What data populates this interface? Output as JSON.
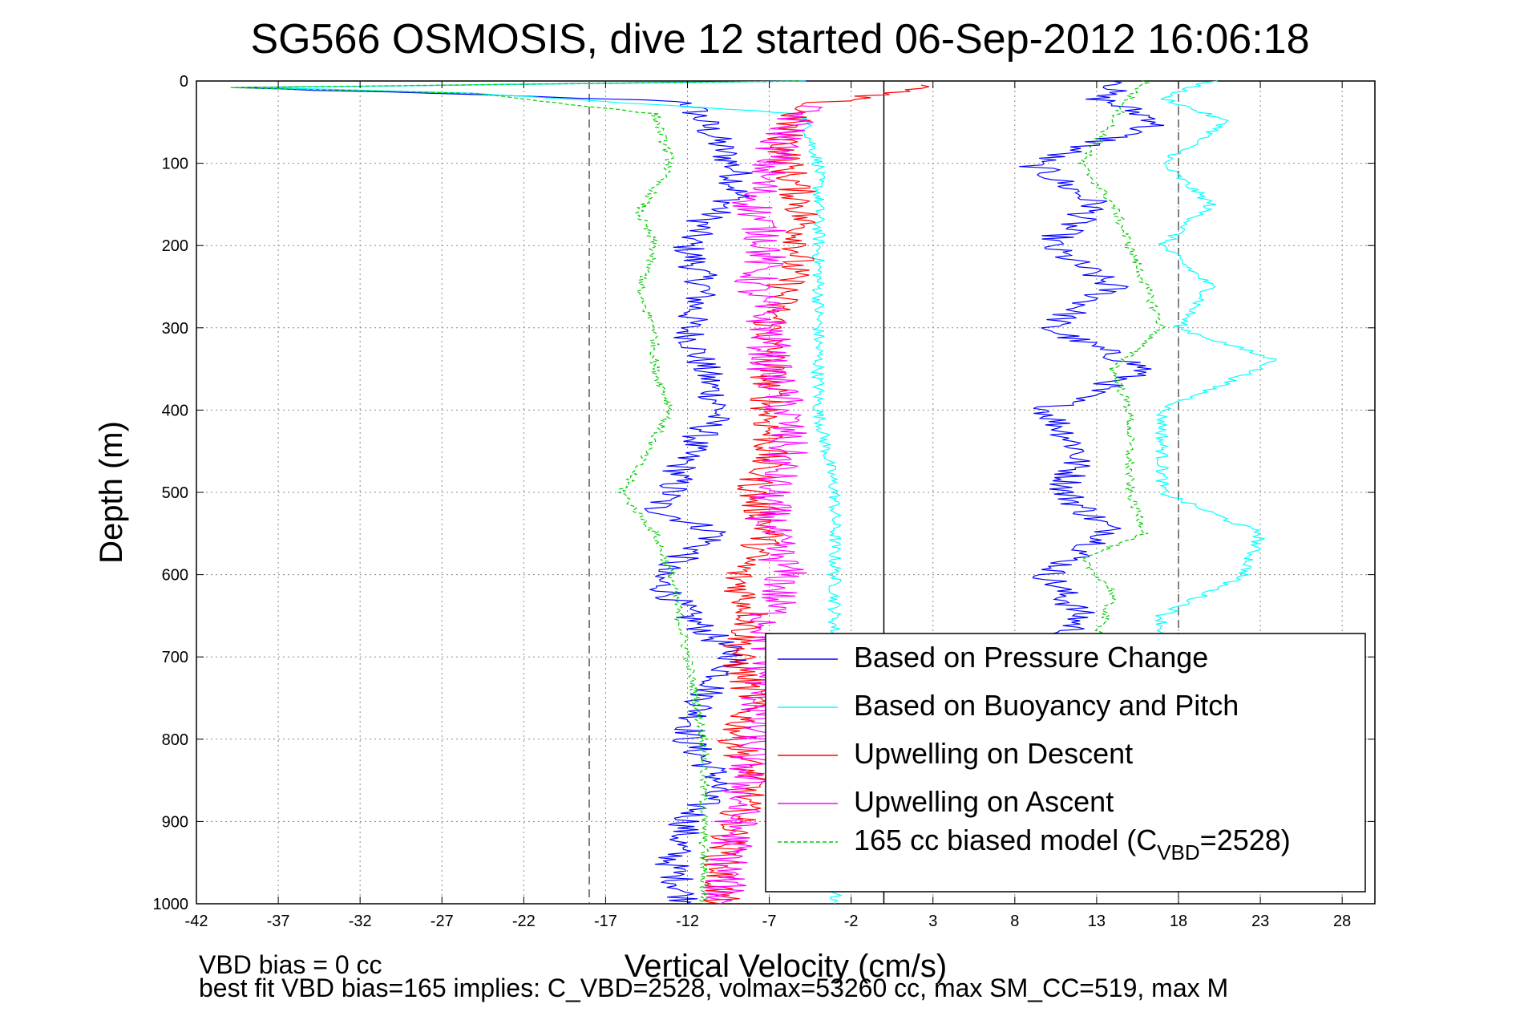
{
  "chart_data": {
    "type": "line",
    "title": "SG566 OSMOSIS, dive 12 started 06-Sep-2012 16:06:18",
    "xlabel": "Vertical Velocity (cm/s)",
    "ylabel": "Depth (m)",
    "xlim": [
      -42,
      30
    ],
    "ylim": [
      1000,
      0
    ],
    "y_reversed": true,
    "grid": true,
    "legend_position": "lower-right",
    "xticks": [
      -42,
      -37,
      -32,
      -27,
      -22,
      -17,
      -12,
      -7,
      -2,
      3,
      8,
      13,
      18,
      23,
      28
    ],
    "yticks": [
      0,
      100,
      200,
      300,
      400,
      500,
      600,
      700,
      800,
      900,
      1000
    ],
    "reference_lines": [
      {
        "x": -18,
        "style": "dashed",
        "color": "#555555"
      },
      {
        "x": 0,
        "style": "solid",
        "color": "#000000"
      },
      {
        "x": 18,
        "style": "dashed",
        "color": "#555555"
      }
    ],
    "series": [
      {
        "name": "Based on Pressure Change",
        "color": "#0000ff",
        "depth": [
          0,
          8,
          15,
          25,
          50,
          80,
          110,
          140,
          170,
          200,
          250,
          300,
          350,
          400,
          450,
          500,
          520,
          550,
          600,
          650,
          700,
          750,
          800,
          850,
          900,
          950,
          1000
        ],
        "descent": [
          -5,
          -40,
          -28,
          -12,
          -11,
          -10,
          -9,
          -9,
          -11,
          -12,
          -11,
          -12,
          -11,
          -10,
          -12,
          -13,
          -14,
          -10,
          -14,
          -12,
          -9,
          -11,
          -12,
          -10,
          -12,
          -13,
          -12
        ],
        "ascent_depth": [
          0,
          20,
          50,
          100,
          150,
          200,
          250,
          300,
          350,
          400,
          450,
          500,
          550,
          600,
          650,
          680
        ],
        "ascent": [
          15,
          13,
          17,
          9,
          13,
          10,
          14,
          10,
          16,
          10,
          12,
          11,
          14,
          10,
          12,
          11
        ]
      },
      {
        "name": "Based on Buoyancy and Pitch",
        "color": "#00ffff",
        "depth": [
          0,
          8,
          15,
          40,
          100,
          200,
          300,
          400,
          500,
          550,
          600,
          650,
          700,
          800,
          900,
          1000
        ],
        "descent": [
          -5,
          -38,
          -25,
          -5,
          -4,
          -4,
          -4,
          -4,
          -3,
          -3,
          -3,
          -3,
          -3,
          -3,
          -3,
          -3
        ],
        "ascent_depth": [
          0,
          20,
          50,
          100,
          150,
          200,
          250,
          300,
          340,
          400,
          500,
          550,
          600,
          650,
          680
        ],
        "ascent": [
          20,
          17,
          21,
          17,
          20,
          17,
          20,
          18,
          24,
          17,
          17,
          23,
          22,
          17,
          17
        ]
      },
      {
        "name": "Upwelling on Descent",
        "color": "#ff0000",
        "depth": [
          5,
          30,
          60,
          100,
          150,
          200,
          250,
          300,
          350,
          400,
          450,
          500,
          550,
          600,
          650,
          700,
          750,
          800,
          850,
          900,
          950,
          1000
        ],
        "values": [
          3,
          -5,
          -6,
          -6,
          -5,
          -5,
          -6,
          -7,
          -7,
          -7,
          -7,
          -8,
          -7,
          -9,
          -8,
          -9,
          -8,
          -9,
          -8,
          -9,
          -10,
          -10
        ]
      },
      {
        "name": "Upwelling on Ascent",
        "color": "#ff00ff",
        "depth": [
          30,
          100,
          150,
          200,
          250,
          300,
          350,
          400,
          450,
          500,
          550,
          600,
          650,
          700,
          800,
          900,
          1000
        ],
        "values": [
          -5,
          -7,
          -8,
          -7,
          -8,
          -7,
          -7,
          -6,
          -6,
          -7,
          -7,
          -6,
          -7,
          -7,
          -8,
          -9,
          -10
        ]
      },
      {
        "name": "165 cc biased model (C",
        "name_sub": "VBD",
        "name_tail": "=2528)",
        "color": "#00cc00",
        "dashed": true,
        "depth": [
          0,
          8,
          15,
          40,
          100,
          160,
          200,
          260,
          300,
          350,
          400,
          500,
          550,
          600,
          700,
          800,
          900,
          1000
        ],
        "descent": [
          -5,
          -40,
          -25,
          -14,
          -13,
          -15,
          -14,
          -15,
          -14,
          -14,
          -13,
          -16,
          -14,
          -13,
          -12,
          -11,
          -11,
          -11
        ],
        "ascent_depth": [
          0,
          20,
          50,
          100,
          150,
          200,
          250,
          300,
          350,
          400,
          500,
          550,
          580,
          620,
          680
        ],
        "ascent": [
          16,
          15,
          14,
          12,
          14,
          15,
          16,
          17,
          14,
          15,
          15,
          16,
          12,
          14,
          13
        ]
      }
    ]
  },
  "footnotes": {
    "line1": "VBD bias = 0 cc",
    "line2": "best fit VBD bias=165 implies: C_VBD=2528, volmax=53260 cc, max SM_CC=519, max M"
  }
}
